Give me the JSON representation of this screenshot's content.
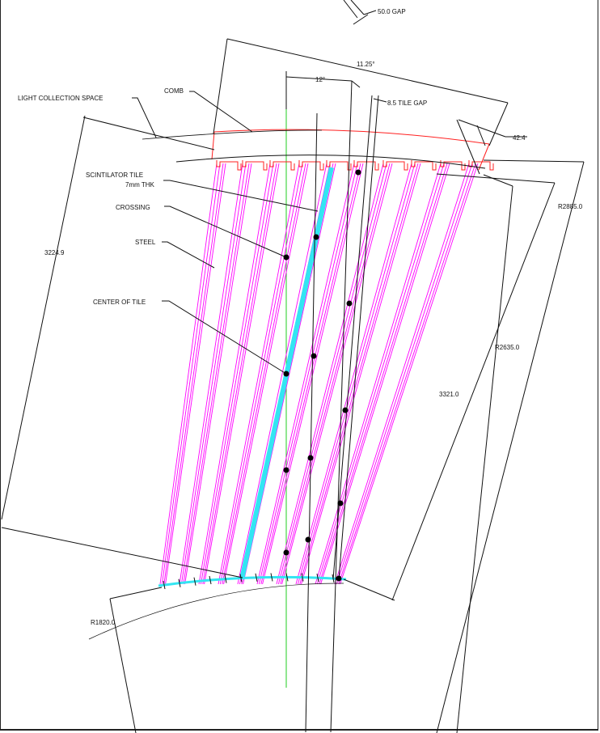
{
  "labels": {
    "gap_top": "50.0 GAP",
    "angle": "11.25°",
    "tile_angle": "12°",
    "tile_gap": "8.5 TILE GAP",
    "comb": "COMB",
    "light_collection": "LIGHT COLLECTION SPACE",
    "scint_tile_1": "SCINTILATOR TILE",
    "scint_tile_2": "7mm THK",
    "crossing": "CROSSING",
    "steel": "STEEL",
    "center_of_tile": "CENTER OF TILE",
    "dim_42": "42.4",
    "r2885": "R2885.0",
    "r2635": "R2635.0",
    "dim_3224": "3224.9",
    "dim_3321": "3321.0",
    "r1820": "R1820.0"
  },
  "colors": {
    "line": "#111111",
    "comb": "#ff2020",
    "steel": "#ff00ff",
    "tile": "#33e5f2",
    "axis": "#22cc22",
    "dot": "#000000"
  }
}
